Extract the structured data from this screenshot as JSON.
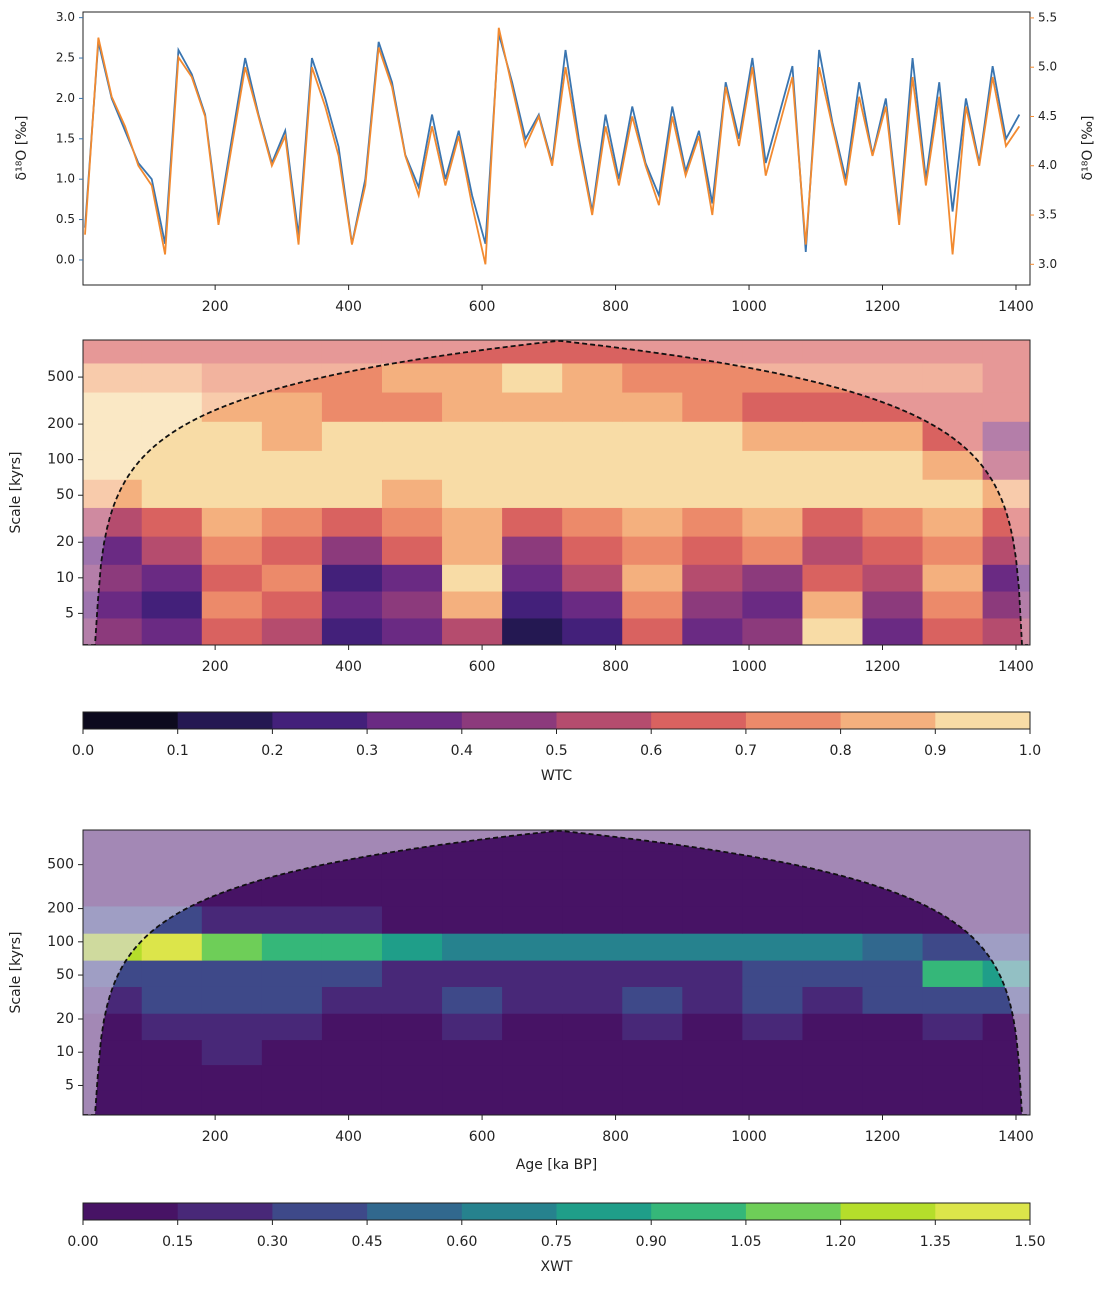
{
  "chart_data": [
    {
      "type": "line",
      "x": [
        5,
        25,
        45,
        65,
        85,
        105,
        125,
        145,
        165,
        185,
        205,
        225,
        245,
        265,
        285,
        305,
        325,
        345,
        365,
        385,
        405,
        425,
        445,
        465,
        485,
        505,
        525,
        545,
        565,
        585,
        605,
        625,
        645,
        665,
        685,
        705,
        725,
        745,
        765,
        785,
        805,
        825,
        845,
        865,
        885,
        905,
        925,
        945,
        965,
        985,
        1005,
        1025,
        1045,
        1065,
        1085,
        1105,
        1125,
        1145,
        1165,
        1185,
        1205,
        1225,
        1245,
        1265,
        1285,
        1305,
        1325,
        1345,
        1365,
        1385,
        1405
      ],
      "xlim": [
        2,
        1421
      ],
      "xticks": [
        200,
        400,
        600,
        800,
        1000,
        1200,
        1400
      ],
      "ylim": [
        -0.31,
        3.07
      ],
      "yticks": [
        {
          "value": 0,
          "label": "0.0"
        },
        {
          "value": 0.5,
          "label": "0.5"
        },
        {
          "value": 1,
          "label": "1.0"
        },
        {
          "value": 1.5,
          "label": "1.5"
        },
        {
          "value": 2,
          "label": "2.0"
        },
        {
          "value": 2.5,
          "label": "2.5"
        },
        {
          "value": 3,
          "label": "3.0"
        }
      ],
      "ylabel": "δ¹⁸O [‰]",
      "y2lim": [
        2.79,
        5.56
      ],
      "y2ticks": [
        {
          "value": 3,
          "label": "3.0"
        },
        3.5,
        {
          "value": 4,
          "label": "4.0"
        },
        4.5,
        {
          "value": 5,
          "label": "5.0"
        },
        5.5
      ],
      "y2label": "δ¹⁸O [‰]",
      "series": [
        {
          "color": "#3a75b0",
          "values": [
            0.4,
            2.7,
            2.0,
            1.6,
            1.2,
            1.0,
            0.2,
            2.6,
            2.3,
            1.8,
            0.5,
            1.5,
            2.5,
            1.8,
            1.2,
            1.6,
            0.3,
            2.5,
            2.0,
            1.4,
            0.2,
            1.0,
            2.7,
            2.2,
            1.3,
            0.9,
            1.8,
            1.0,
            1.6,
            0.8,
            0.2,
            2.8,
            2.2,
            1.5,
            1.8,
            1.2,
            2.6,
            1.5,
            0.6,
            1.8,
            1.0,
            1.9,
            1.2,
            0.8,
            1.9,
            1.1,
            1.6,
            0.7,
            2.2,
            1.5,
            2.5,
            1.2,
            1.8,
            2.4,
            0.1,
            2.6,
            1.7,
            1.0,
            2.2,
            1.3,
            2.0,
            0.5,
            2.5,
            1.0,
            2.2,
            0.6,
            2.0,
            1.2,
            2.4,
            1.5,
            1.8
          ]
        },
        {
          "color": "#f28a30",
          "axis": "y2",
          "values": [
            3.3,
            5.3,
            4.7,
            4.4,
            4.0,
            3.8,
            3.1,
            5.1,
            4.9,
            4.5,
            3.4,
            4.2,
            5.0,
            4.5,
            4.0,
            4.3,
            3.2,
            5.0,
            4.6,
            4.1,
            3.2,
            3.8,
            5.2,
            4.8,
            4.1,
            3.7,
            4.4,
            3.8,
            4.3,
            3.6,
            3.0,
            5.4,
            4.8,
            4.2,
            4.5,
            4.0,
            5.0,
            4.2,
            3.5,
            4.4,
            3.8,
            4.5,
            4.0,
            3.6,
            4.5,
            3.9,
            4.3,
            3.5,
            4.8,
            4.2,
            5.0,
            3.9,
            4.4,
            4.9,
            3.2,
            5.0,
            4.4,
            3.8,
            4.7,
            4.1,
            4.6,
            3.4,
            4.9,
            3.8,
            4.7,
            3.1,
            4.6,
            4.0,
            4.9,
            4.2,
            4.4
          ]
        }
      ]
    },
    {
      "type": "heatmap",
      "x": [
        45,
        135,
        225,
        315,
        405,
        495,
        585,
        675,
        765,
        855,
        945,
        1035,
        1125,
        1215,
        1305,
        1395
      ],
      "y": [
        3.5,
        6,
        10,
        17,
        30,
        52,
        90,
        160,
        280,
        500,
        870
      ],
      "z": [
        [
          0.4,
          0.3,
          0.6,
          0.5,
          0.2,
          0.3,
          0.5,
          0.1,
          0.2,
          0.6,
          0.3,
          0.4,
          0.9,
          0.3,
          0.6,
          0.5
        ],
        [
          0.3,
          0.2,
          0.7,
          0.6,
          0.3,
          0.4,
          0.8,
          0.2,
          0.3,
          0.7,
          0.4,
          0.3,
          0.8,
          0.4,
          0.7,
          0.4
        ],
        [
          0.4,
          0.3,
          0.6,
          0.7,
          0.2,
          0.3,
          0.9,
          0.3,
          0.5,
          0.8,
          0.5,
          0.4,
          0.6,
          0.5,
          0.8,
          0.3
        ],
        [
          0.3,
          0.5,
          0.7,
          0.6,
          0.4,
          0.6,
          0.8,
          0.4,
          0.6,
          0.7,
          0.6,
          0.7,
          0.5,
          0.6,
          0.7,
          0.5
        ],
        [
          0.5,
          0.6,
          0.8,
          0.7,
          0.6,
          0.7,
          0.8,
          0.6,
          0.7,
          0.8,
          0.7,
          0.8,
          0.6,
          0.7,
          0.8,
          0.6
        ],
        [
          0.8,
          0.9,
          0.9,
          0.9,
          0.9,
          0.8,
          0.9,
          0.9,
          0.9,
          0.9,
          0.9,
          0.9,
          0.9,
          0.9,
          0.9,
          0.8
        ],
        [
          0.9,
          0.9,
          0.9,
          0.9,
          0.9,
          0.9,
          0.9,
          0.9,
          0.9,
          0.9,
          0.9,
          0.9,
          0.9,
          0.9,
          0.8,
          0.5
        ],
        [
          0.9,
          0.9,
          0.9,
          0.8,
          0.9,
          0.9,
          0.9,
          0.9,
          0.9,
          0.9,
          0.9,
          0.8,
          0.8,
          0.8,
          0.6,
          0.4
        ],
        [
          0.9,
          0.9,
          0.8,
          0.8,
          0.7,
          0.7,
          0.8,
          0.8,
          0.8,
          0.8,
          0.7,
          0.6,
          0.6,
          0.6,
          0.6,
          0.6
        ],
        [
          0.8,
          0.8,
          0.7,
          0.7,
          0.7,
          0.8,
          0.8,
          0.9,
          0.8,
          0.7,
          0.7,
          0.7,
          0.7,
          0.7,
          0.7,
          0.6
        ],
        [
          0.6,
          0.6,
          0.6,
          0.6,
          0.6,
          0.6,
          0.6,
          0.6,
          0.6,
          0.6,
          0.6,
          0.6,
          0.6,
          0.6,
          0.6,
          0.6
        ]
      ],
      "xlim": [
        2,
        1421
      ],
      "xticks": [
        200,
        400,
        600,
        800,
        1000,
        1200,
        1400
      ],
      "ylim": [
        2.7,
        1030
      ],
      "yscale": "log",
      "yticks": [
        5,
        10,
        20,
        50,
        100,
        200,
        500
      ],
      "ylabel": "Scale [kyrs]",
      "colorbar": {
        "label": "WTC",
        "ticks": [
          {
            "value": 0,
            "label": "0.0"
          },
          0.1,
          0.2,
          0.3,
          0.4,
          0.5,
          0.6,
          0.7,
          0.8,
          0.9,
          {
            "value": 1,
            "label": "1.0"
          }
        ],
        "colors": [
          "#0d0a1e",
          "#241852",
          "#43207a",
          "#6a2a83",
          "#8c3a7c",
          "#b54c6e",
          "#d96260",
          "#ec8a6a",
          "#f4b07e",
          "#f8dca6"
        ]
      }
    },
    {
      "type": "heatmap",
      "x": [
        45,
        135,
        225,
        315,
        405,
        495,
        585,
        675,
        765,
        855,
        945,
        1035,
        1125,
        1215,
        1305,
        1395
      ],
      "y": [
        3.5,
        6,
        10,
        17,
        30,
        52,
        90,
        160,
        280,
        500,
        870
      ],
      "z": [
        [
          0.05,
          0.05,
          0.1,
          0.05,
          0.05,
          0.05,
          0.1,
          0.05,
          0.05,
          0.05,
          0.05,
          0.05,
          0.1,
          0.05,
          0.05,
          0.05
        ],
        [
          0.05,
          0.1,
          0.1,
          0.05,
          0.05,
          0.05,
          0.1,
          0.05,
          0.05,
          0.1,
          0.05,
          0.05,
          0.1,
          0.05,
          0.05,
          0.05
        ],
        [
          0.1,
          0.1,
          0.2,
          0.1,
          0.05,
          0.1,
          0.1,
          0.05,
          0.1,
          0.1,
          0.05,
          0.1,
          0.1,
          0.05,
          0.1,
          0.1
        ],
        [
          0.1,
          0.2,
          0.2,
          0.2,
          0.1,
          0.1,
          0.2,
          0.1,
          0.1,
          0.2,
          0.1,
          0.2,
          0.1,
          0.1,
          0.2,
          0.1
        ],
        [
          0.2,
          0.3,
          0.3,
          0.3,
          0.2,
          0.2,
          0.3,
          0.2,
          0.2,
          0.3,
          0.2,
          0.3,
          0.2,
          0.3,
          0.3,
          0.3
        ],
        [
          0.3,
          0.3,
          0.4,
          0.3,
          0.3,
          0.2,
          0.2,
          0.2,
          0.2,
          0.2,
          0.2,
          0.3,
          0.3,
          0.4,
          0.9,
          0.8
        ],
        [
          1.2,
          1.4,
          1.1,
          0.9,
          1.0,
          0.8,
          0.7,
          0.6,
          0.6,
          0.6,
          0.6,
          0.7,
          0.6,
          0.5,
          0.4,
          0.3
        ],
        [
          0.4,
          0.3,
          0.2,
          0.2,
          0.2,
          0.1,
          0.1,
          0.1,
          0.1,
          0.1,
          0.1,
          0.1,
          0.1,
          0.1,
          0.1,
          0.1
        ],
        [
          0.05,
          0.05,
          0.05,
          0.05,
          0.05,
          0.05,
          0.05,
          0.05,
          0.05,
          0.05,
          0.05,
          0.05,
          0.05,
          0.05,
          0.05,
          0.05
        ],
        [
          0.05,
          0.05,
          0.05,
          0.05,
          0.05,
          0.05,
          0.05,
          0.05,
          0.05,
          0.05,
          0.05,
          0.05,
          0.05,
          0.05,
          0.05,
          0.05
        ],
        [
          0.05,
          0.05,
          0.05,
          0.05,
          0.05,
          0.05,
          0.05,
          0.05,
          0.05,
          0.05,
          0.05,
          0.05,
          0.05,
          0.05,
          0.05,
          0.05
        ]
      ],
      "xlim": [
        2,
        1421
      ],
      "xticks": [
        200,
        400,
        600,
        800,
        1000,
        1200,
        1400
      ],
      "xlabel": "Age [ka BP]",
      "ylim": [
        2.7,
        1030
      ],
      "yscale": "log",
      "yticks": [
        5,
        10,
        20,
        50,
        100,
        200,
        500
      ],
      "ylabel": "Scale [kyrs]",
      "colorbar": {
        "label": "XWT",
        "ticks": [
          {
            "value": 0,
            "label": "0.00"
          },
          {
            "value": 0.15,
            "label": "0.15"
          },
          {
            "value": 0.3,
            "label": "0.30"
          },
          {
            "value": 0.45,
            "label": "0.45"
          },
          {
            "value": 0.6,
            "label": "0.60"
          },
          {
            "value": 0.75,
            "label": "0.75"
          },
          {
            "value": 0.9,
            "label": "0.90"
          },
          {
            "value": 1.05,
            "label": "1.05"
          },
          {
            "value": 1.2,
            "label": "1.20"
          },
          {
            "value": 1.35,
            "label": "1.35"
          },
          {
            "value": 1.5,
            "label": "1.50"
          }
        ],
        "colors": [
          "#471365",
          "#482878",
          "#3e4989",
          "#31688e",
          "#26828e",
          "#1f9e89",
          "#35b779",
          "#6ece58",
          "#b5de2b",
          "#dce54a"
        ]
      }
    }
  ]
}
